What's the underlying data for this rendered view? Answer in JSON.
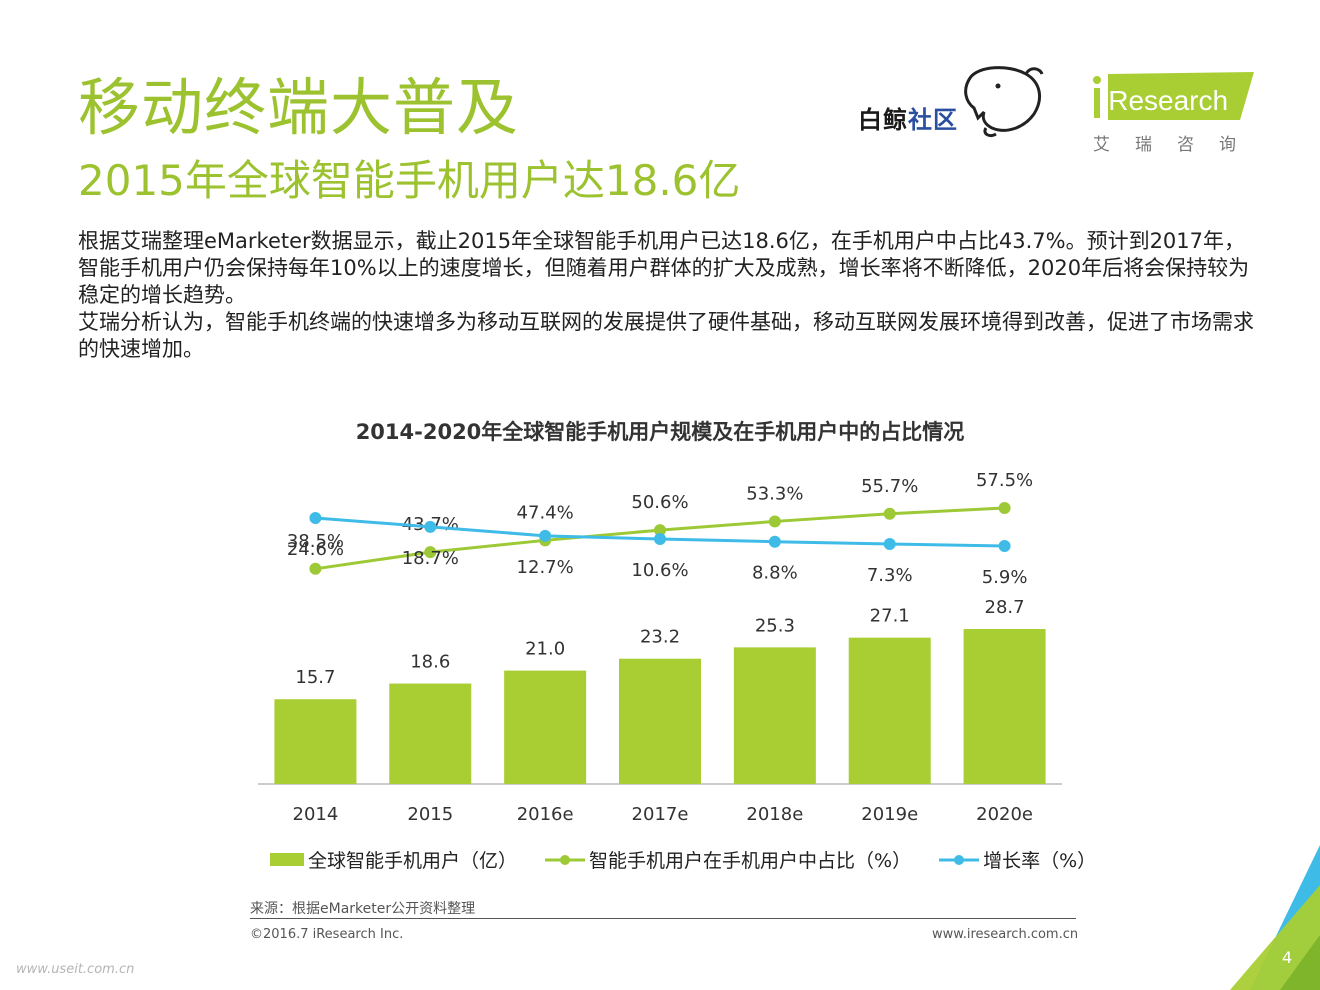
{
  "header": {
    "title": "移动终端大普及",
    "subtitle": "2015年全球智能手机用户达18.6亿"
  },
  "body": {
    "para1": "根据艾瑞整理eMarketer数据显示，截止2015年全球智能手机用户已达18.6亿，在手机用户中占比43.7%。预计到2017年，智能手机用户仍会保持每年10%以上的速度增长，但随着用户群体的扩大及成熟，增长率将不断降低，2020年后将会保持较为稳定的增长趋势。",
    "para2": "艾瑞分析认为，智能手机终端的快速增多为移动互联网的发展提供了硬件基础，移动互联网发展环境得到改善，促进了市场需求的快速增加。"
  },
  "logos": {
    "baijing_a": "白鲸",
    "baijing_b": "社区",
    "ir_brand": "iResearch",
    "ir_sub": "艾瑞咨询"
  },
  "chart_data": {
    "type": "bar",
    "title": "2014-2020年全球智能手机用户规模及在手机用户中的占比情况",
    "categories": [
      "2014",
      "2015",
      "2016e",
      "2017e",
      "2018e",
      "2019e",
      "2020e"
    ],
    "series": [
      {
        "name": "全球智能手机用户（亿）",
        "type": "bar",
        "color": "#a8ce34",
        "values": [
          15.7,
          18.6,
          21.0,
          23.2,
          25.3,
          27.1,
          28.7
        ],
        "labels": [
          "15.7",
          "18.6",
          "21.0",
          "23.2",
          "25.3",
          "27.1",
          "28.7"
        ]
      },
      {
        "name": "智能手机用户在手机用户中占比（%）",
        "type": "line",
        "color": "#9cc935",
        "values": [
          38.5,
          43.7,
          47.4,
          50.6,
          53.3,
          55.7,
          57.5
        ],
        "labels": [
          "38.5%",
          "43.7%",
          "47.4%",
          "50.6%",
          "53.3%",
          "55.7%",
          "57.5%"
        ]
      },
      {
        "name": "增长率（%）",
        "type": "line",
        "color": "#3fbbe8",
        "values": [
          24.6,
          18.7,
          12.7,
          10.6,
          8.8,
          7.3,
          5.9
        ],
        "labels": [
          "24.6%",
          "18.7%",
          "12.7%",
          "10.6%",
          "8.8%",
          "7.3%",
          "5.9%"
        ]
      }
    ],
    "legend_position": "bottom",
    "grid": false
  },
  "footer": {
    "source": "来源：根据eMarketer公开资料整理",
    "copyright": "©2016.7 iResearch Inc.",
    "site": "www.iresearch.com.cn",
    "page": "4",
    "watermark": "www.useit.com.cn"
  },
  "colors": {
    "accent": "#9cc22f",
    "bar": "#a8ce34",
    "blue": "#3fbbe8"
  }
}
